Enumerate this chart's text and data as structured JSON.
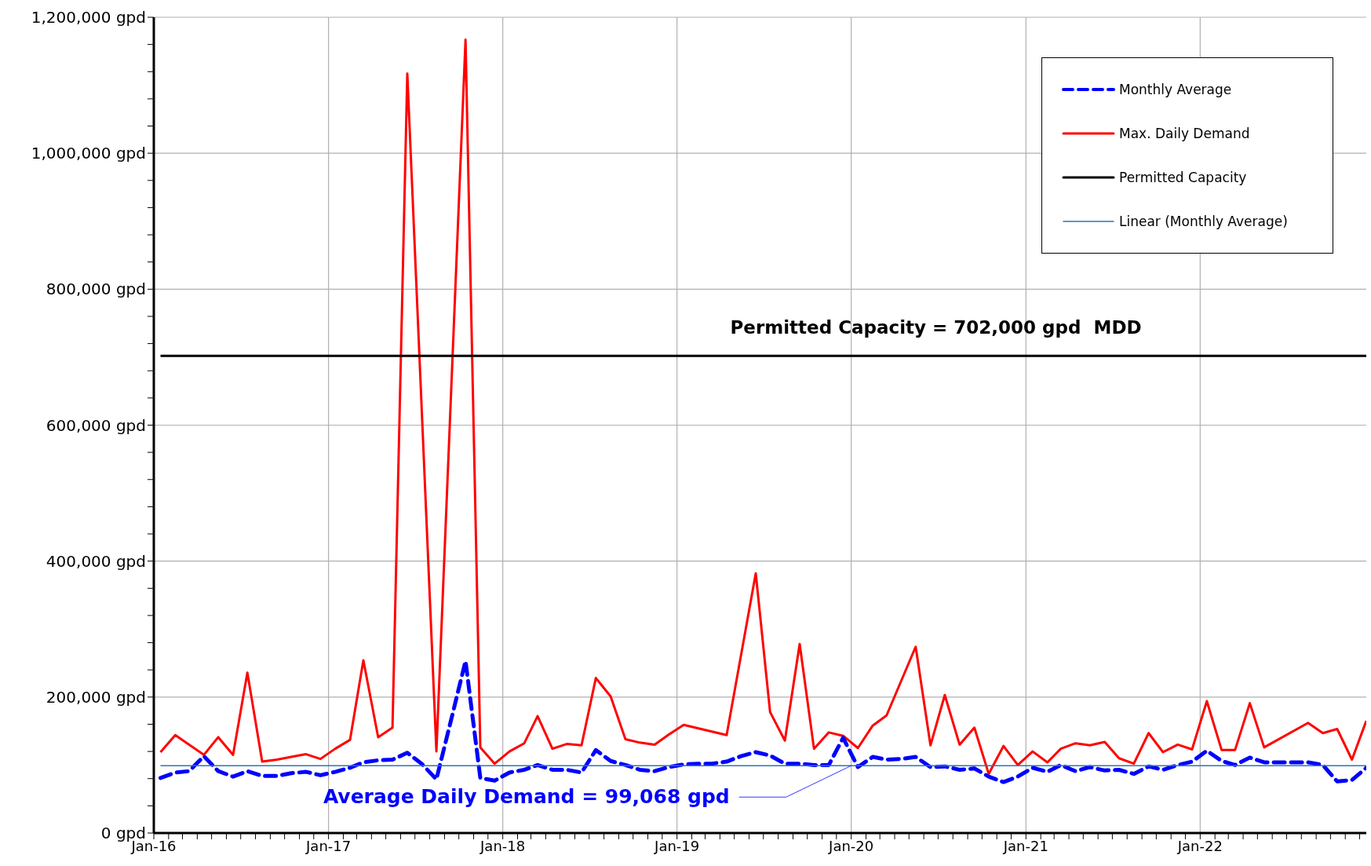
{
  "chart_data": {
    "type": "line",
    "xlim": [
      "2016-01-01",
      "2022-12-15"
    ],
    "ylim": [
      0,
      1200000
    ],
    "xticks": [
      {
        "value": "2016-01",
        "label": "Jan-16"
      },
      {
        "value": "2016-02",
        "label": null
      },
      {
        "value": "2016-03",
        "label": null
      },
      {
        "value": "2016-04",
        "label": null
      },
      {
        "value": "2016-05",
        "label": null
      },
      {
        "value": "2016-06",
        "label": null
      },
      {
        "value": "2016-07",
        "label": null
      },
      {
        "value": "2016-08",
        "label": null
      },
      {
        "value": "2016-09",
        "label": null
      },
      {
        "value": "2016-10",
        "label": null
      },
      {
        "value": "2016-11",
        "label": null
      },
      {
        "value": "2016-12",
        "label": null
      },
      {
        "value": "2017-01",
        "label": "Jan-17"
      },
      {
        "value": "2017-02",
        "label": null
      },
      {
        "value": "2017-03",
        "label": null
      },
      {
        "value": "2017-04",
        "label": null
      },
      {
        "value": "2017-05",
        "label": null
      },
      {
        "value": "2017-06",
        "label": null
      },
      {
        "value": "2017-07",
        "label": null
      },
      {
        "value": "2017-08",
        "label": null
      },
      {
        "value": "2017-09",
        "label": null
      },
      {
        "value": "2017-10",
        "label": null
      },
      {
        "value": "2017-11",
        "label": null
      },
      {
        "value": "2017-12",
        "label": null
      },
      {
        "value": "2018-01",
        "label": "Jan-18"
      },
      {
        "value": "2018-02",
        "label": null
      },
      {
        "value": "2018-03",
        "label": null
      },
      {
        "value": "2018-04",
        "label": null
      },
      {
        "value": "2018-05",
        "label": null
      },
      {
        "value": "2018-06",
        "label": null
      },
      {
        "value": "2018-07",
        "label": null
      },
      {
        "value": "2018-08",
        "label": null
      },
      {
        "value": "2018-09",
        "label": null
      },
      {
        "value": "2018-10",
        "label": null
      },
      {
        "value": "2018-11",
        "label": null
      },
      {
        "value": "2018-12",
        "label": null
      },
      {
        "value": "2019-01",
        "label": "Jan-19"
      },
      {
        "value": "2019-02",
        "label": null
      },
      {
        "value": "2019-03",
        "label": null
      },
      {
        "value": "2019-04",
        "label": null
      },
      {
        "value": "2019-05",
        "label": null
      },
      {
        "value": "2019-06",
        "label": null
      },
      {
        "value": "2019-07",
        "label": null
      },
      {
        "value": "2019-08",
        "label": null
      },
      {
        "value": "2019-09",
        "label": null
      },
      {
        "value": "2019-10",
        "label": null
      },
      {
        "value": "2019-11",
        "label": null
      },
      {
        "value": "2019-12",
        "label": null
      },
      {
        "value": "2020-01",
        "label": "Jan-20"
      },
      {
        "value": "2020-02",
        "label": null
      },
      {
        "value": "2020-03",
        "label": null
      },
      {
        "value": "2020-04",
        "label": null
      },
      {
        "value": "2020-05",
        "label": null
      },
      {
        "value": "2020-06",
        "label": null
      },
      {
        "value": "2020-07",
        "label": null
      },
      {
        "value": "2020-08",
        "label": null
      },
      {
        "value": "2020-09",
        "label": null
      },
      {
        "value": "2020-10",
        "label": null
      },
      {
        "value": "2020-11",
        "label": null
      },
      {
        "value": "2020-12",
        "label": null
      },
      {
        "value": "2021-01",
        "label": "Jan-21"
      },
      {
        "value": "2021-02",
        "label": null
      },
      {
        "value": "2021-03",
        "label": null
      },
      {
        "value": "2021-04",
        "label": null
      },
      {
        "value": "2021-05",
        "label": null
      },
      {
        "value": "2021-06",
        "label": null
      },
      {
        "value": "2021-07",
        "label": null
      },
      {
        "value": "2021-08",
        "label": null
      },
      {
        "value": "2021-09",
        "label": null
      },
      {
        "value": "2021-10",
        "label": null
      },
      {
        "value": "2021-11",
        "label": null
      },
      {
        "value": "2021-12",
        "label": null
      },
      {
        "value": "2022-01",
        "label": "Jan-22"
      },
      {
        "value": "2022-02",
        "label": null
      },
      {
        "value": "2022-03",
        "label": null
      },
      {
        "value": "2022-04",
        "label": null
      },
      {
        "value": "2022-05",
        "label": null
      },
      {
        "value": "2022-06",
        "label": null
      },
      {
        "value": "2022-07",
        "label": null
      },
      {
        "value": "2022-08",
        "label": null
      },
      {
        "value": "2022-09",
        "label": null
      },
      {
        "value": "2022-10",
        "label": null
      },
      {
        "value": "2022-11",
        "label": null
      },
      {
        "value": "2022-12",
        "label": null
      }
    ],
    "yticks": [
      {
        "value": 0,
        "label": "0 gpd"
      },
      {
        "value": 40000,
        "label": null
      },
      {
        "value": 80000,
        "label": null
      },
      {
        "value": 120000,
        "label": null
      },
      {
        "value": 160000,
        "label": null
      },
      {
        "value": 200000,
        "label": "200,000 gpd"
      },
      {
        "value": 240000,
        "label": null
      },
      {
        "value": 280000,
        "label": null
      },
      {
        "value": 320000,
        "label": null
      },
      {
        "value": 360000,
        "label": null
      },
      {
        "value": 400000,
        "label": "400,000 gpd"
      },
      {
        "value": 440000,
        "label": null
      },
      {
        "value": 480000,
        "label": null
      },
      {
        "value": 520000,
        "label": null
      },
      {
        "value": 560000,
        "label": null
      },
      {
        "value": 600000,
        "label": "600,000 gpd"
      },
      {
        "value": 640000,
        "label": null
      },
      {
        "value": 680000,
        "label": null
      },
      {
        "value": 720000,
        "label": null
      },
      {
        "value": 760000,
        "label": null
      },
      {
        "value": 800000,
        "label": "800,000 gpd"
      },
      {
        "value": 840000,
        "label": null
      },
      {
        "value": 880000,
        "label": null
      },
      {
        "value": 920000,
        "label": null
      },
      {
        "value": 960000,
        "label": null
      },
      {
        "value": 1000000,
        "label": "1,000,000 gpd"
      },
      {
        "value": 1040000,
        "label": null
      },
      {
        "value": 1080000,
        "label": null
      },
      {
        "value": 1120000,
        "label": null
      },
      {
        "value": 1160000,
        "label": null
      },
      {
        "value": 1200000,
        "label": "1,200,000 gpd"
      }
    ],
    "grid": true,
    "legend": "top right",
    "marker": "none",
    "series": [
      {
        "name": "Monthly Average",
        "color": "#0000ff",
        "line_style": "dashed",
        "x": [
          "2016-01-15",
          "2016-02-15",
          "2016-03-15",
          "2016-04-15",
          "2016-05-15",
          "2016-06-15",
          "2016-07-15",
          "2016-08-15",
          "2016-09-15",
          "2016-10-15",
          "2016-11-15",
          "2016-12-15",
          "2017-01-15",
          "2017-02-15",
          "2017-03-15",
          "2017-04-15",
          "2017-05-15",
          "2017-06-15",
          "2017-07-15",
          "2017-08-15",
          "2017-09-15",
          "2017-10-15",
          "2017-11-15",
          "2017-12-15",
          "2018-01-15",
          "2018-02-15",
          "2018-03-15",
          "2018-04-15",
          "2018-05-15",
          "2018-06-15",
          "2018-07-15",
          "2018-08-15",
          "2018-09-15",
          "2018-10-15",
          "2018-11-15",
          "2018-12-15",
          "2019-01-15",
          "2019-02-15",
          "2019-03-15",
          "2019-04-15",
          "2019-05-15",
          "2019-06-15",
          "2019-07-15",
          "2019-08-15",
          "2019-09-15",
          "2019-10-15",
          "2019-11-15",
          "2019-12-15",
          "2020-01-15",
          "2020-02-15",
          "2020-03-15",
          "2020-04-15",
          "2020-05-15",
          "2020-06-15",
          "2020-07-15",
          "2020-08-15",
          "2020-09-15",
          "2020-10-15",
          "2020-11-15",
          "2020-12-15",
          "2021-01-15",
          "2021-02-15",
          "2021-03-15",
          "2021-04-15",
          "2021-05-15",
          "2021-06-15",
          "2021-07-15",
          "2021-08-15",
          "2021-09-15",
          "2021-10-15",
          "2021-11-15",
          "2021-12-15",
          "2022-01-15",
          "2022-02-15",
          "2022-03-15",
          "2022-04-15",
          "2022-05-15",
          "2022-06-15",
          "2022-07-15",
          "2022-08-15",
          "2022-09-15",
          "2022-10-15",
          "2022-11-15",
          "2022-12-15"
        ],
        "values": [
          81000,
          89000,
          91000,
          113000,
          91000,
          83000,
          91000,
          84000,
          84000,
          88000,
          90000,
          85000,
          90000,
          96000,
          104000,
          107000,
          108000,
          118000,
          102000,
          79000,
          167000,
          253000,
          81000,
          77000,
          89000,
          93000,
          100000,
          93000,
          93000,
          89000,
          122000,
          106000,
          100000,
          93000,
          91000,
          97000,
          101000,
          102000,
          102000,
          105000,
          113000,
          119000,
          114000,
          102000,
          102000,
          100000,
          100000,
          140000,
          97000,
          112000,
          108000,
          109000,
          112000,
          97000,
          98000,
          93000,
          95000,
          83000,
          75000,
          83000,
          96000,
          90000,
          100000,
          91000,
          97000,
          92000,
          93000,
          87000,
          98000,
          93000,
          100000,
          105000,
          121000,
          106000,
          100000,
          111000,
          104000,
          104000,
          104000,
          104000,
          100000,
          76000,
          78000,
          96000
        ]
      },
      {
        "name": "Max. Daily Demand",
        "color": "#ff0000",
        "line_style": "solid",
        "x": [
          "2016-01-15",
          "2016-02-15",
          "2016-03-15",
          "2016-04-15",
          "2016-05-15",
          "2016-06-15",
          "2016-07-15",
          "2016-08-15",
          "2016-09-15",
          "2016-10-15",
          "2016-11-15",
          "2016-12-15",
          "2017-01-15",
          "2017-02-15",
          "2017-03-15",
          "2017-04-15",
          "2017-05-15",
          "2017-06-15",
          "2017-08-15",
          "2017-10-15",
          "2017-11-15",
          "2017-12-15",
          "2018-01-15",
          "2018-02-15",
          "2018-03-15",
          "2018-04-15",
          "2018-05-15",
          "2018-06-15",
          "2018-07-15",
          "2018-08-15",
          "2018-09-15",
          "2018-10-15",
          "2018-11-15",
          "2018-12-15",
          "2019-01-15",
          "2019-04-15",
          "2019-06-15",
          "2019-07-15",
          "2019-08-15",
          "2019-09-15",
          "2019-10-15",
          "2019-11-15",
          "2019-12-15",
          "2020-01-15",
          "2020-02-15",
          "2020-03-15",
          "2020-05-15",
          "2020-06-15",
          "2020-07-15",
          "2020-08-15",
          "2020-09-15",
          "2020-10-15",
          "2020-11-15",
          "2020-12-15",
          "2021-01-15",
          "2021-02-15",
          "2021-03-15",
          "2021-04-15",
          "2021-05-15",
          "2021-06-15",
          "2021-07-15",
          "2021-08-15",
          "2021-09-15",
          "2021-10-15",
          "2021-11-15",
          "2021-12-15",
          "2022-01-15",
          "2022-02-15",
          "2022-03-15",
          "2022-04-15",
          "2022-05-15",
          "2022-08-15",
          "2022-09-15",
          "2022-10-15",
          "2022-11-15",
          "2022-12-15"
        ],
        "values": [
          119000,
          144000,
          130000,
          115000,
          141000,
          115000,
          236000,
          105000,
          108000,
          112000,
          116000,
          109000,
          124000,
          137000,
          254000,
          141000,
          155000,
          1117000,
          120000,
          1167000,
          126000,
          102000,
          120000,
          132000,
          172000,
          124000,
          131000,
          129000,
          228000,
          201000,
          138000,
          133000,
          130000,
          145000,
          159000,
          144000,
          382000,
          178000,
          136000,
          278000,
          124000,
          148000,
          143000,
          125000,
          158000,
          173000,
          274000,
          129000,
          203000,
          130000,
          155000,
          87000,
          128000,
          100000,
          120000,
          104000,
          124000,
          132000,
          129000,
          134000,
          110000,
          102000,
          147000,
          119000,
          130000,
          123000,
          194000,
          122000,
          122000,
          191000,
          126000,
          162000,
          147000,
          153000,
          108000,
          165000
        ]
      },
      {
        "name": "Permitted Capacity",
        "color": "#000000",
        "line_style": "solid",
        "x": [
          "2016-01-15",
          "2022-12-15"
        ],
        "values": [
          702000,
          702000
        ]
      },
      {
        "name": "Linear (Monthly Average)",
        "color": "#2e75b6",
        "line_style": "solid",
        "x": [
          "2016-01-15",
          "2022-12-15"
        ],
        "values": [
          99000,
          99000
        ]
      }
    ],
    "annotations": [
      {
        "text": "Permitted Capacity = 702,000 gpd  MDD",
        "y": 702000
      },
      {
        "text": "Average Daily Demand = 99,068 gpd",
        "x": "2020-01-01",
        "y": 99068
      }
    ]
  }
}
